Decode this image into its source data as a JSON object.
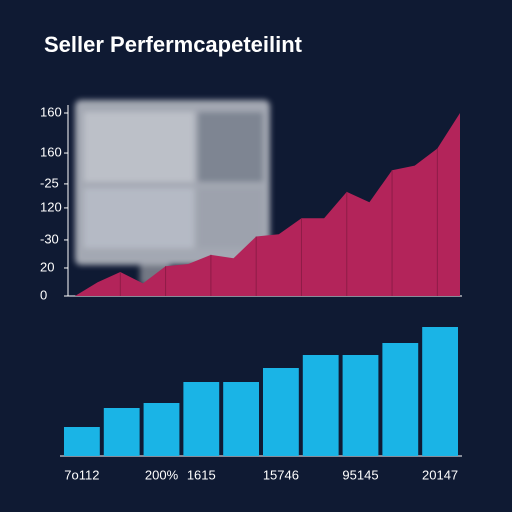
{
  "title": "Seller Perfermcapeteilint",
  "chart_data": [
    {
      "type": "area",
      "color": "#b3245a",
      "categories": [
        null,
        null,
        null,
        null,
        null,
        null,
        null,
        null,
        null,
        null,
        null,
        null,
        null,
        null,
        null,
        null,
        null,
        null
      ],
      "values": [
        0,
        12,
        21,
        11,
        26,
        28,
        36,
        33,
        52,
        54,
        68,
        68,
        91,
        82,
        110,
        114,
        129,
        160
      ],
      "ylim": [
        0,
        160
      ],
      "yticks": [
        0,
        {
          "value": 24.5,
          "label": "20"
        },
        {
          "value": 49,
          "label": "-30"
        },
        {
          "value": 77,
          "label": "120"
        },
        {
          "value": 98,
          "label": "-25"
        },
        {
          "value": 125,
          "label": "160"
        },
        160
      ]
    },
    {
      "type": "bar",
      "color": "#1ab4e6",
      "categories": [
        "7o112",
        null,
        "200%",
        "1615",
        null,
        "15746",
        null,
        "95145",
        null,
        "20147"
      ],
      "values": [
        29,
        48,
        53,
        74,
        74,
        88,
        101,
        101,
        113,
        129
      ]
    }
  ]
}
